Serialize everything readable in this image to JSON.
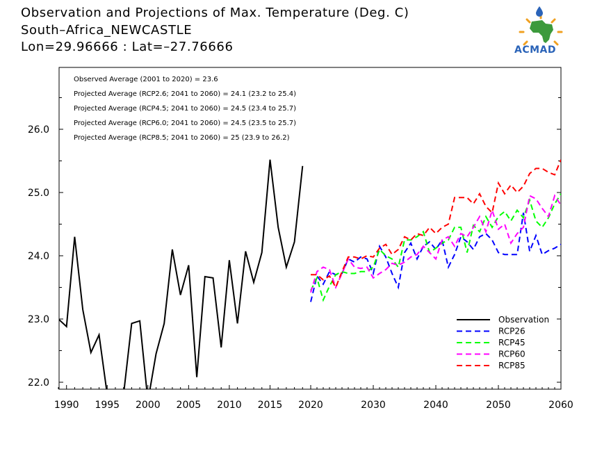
{
  "header": {
    "title_line1": "Observation and Projections of Max. Temperature (Deg. C)",
    "title_line2": "South–Africa_NEWCASTLE",
    "title_line3": "Lon=29.96666 : Lat=–27.76666"
  },
  "logo": {
    "text": "ACMAD",
    "colors": {
      "africa": "#3c9a3c",
      "rays": "#f0a020",
      "drop": "#2a63b8"
    }
  },
  "chart_data": {
    "type": "line",
    "xlim": [
      1989,
      2060
    ],
    "ylim": [
      21.9,
      26.9
    ],
    "xticks": [
      1990,
      1995,
      2000,
      2005,
      2010,
      2015,
      2020,
      2030,
      2040,
      2050,
      2060
    ],
    "yticks": [
      22.0,
      23.0,
      24.0,
      25.0,
      26.0
    ],
    "ytick_labels": [
      "22.0",
      "23.0",
      "24.0",
      "25.0",
      "26.0"
    ],
    "grid": false,
    "legend_position": "bottom-right",
    "annotations": [
      "Observed Average (2001 to 2020) = 23.6",
      "Projected Average (RCP2.6; 2041 to 2060) = 24.1 (23.2 to 25.4)",
      "Projected Average (RCP4.5; 2041 to 2060) = 24.5 (23.4 to 25.7)",
      "Projected Average (RCP6.0; 2041 to 2060) = 24.5 (23.5 to 25.7)",
      "Projected Average (RCP8.5; 2041 to 2060) = 25 (23.9 to 26.2)"
    ],
    "series": [
      {
        "name": "Observation",
        "color": "#000000",
        "dash": false,
        "x": [
          1989,
          1990,
          1991,
          1992,
          1993,
          1994,
          1995,
          1996,
          1997,
          1998,
          1999,
          2000,
          2001,
          2002,
          2003,
          2004,
          2005,
          2006,
          2007,
          2008,
          2009,
          2010,
          2011,
          2012,
          2013,
          2014,
          2015,
          2016,
          2017,
          2018,
          2019
        ],
        "values": [
          23.0,
          22.88,
          24.3,
          23.15,
          22.47,
          22.75,
          21.8,
          21.6,
          21.8,
          22.93,
          22.97,
          21.7,
          22.45,
          22.93,
          24.1,
          23.38,
          23.85,
          22.08,
          23.67,
          23.65,
          22.55,
          23.93,
          22.93,
          24.07,
          23.58,
          24.05,
          25.52,
          24.45,
          23.82,
          24.22,
          25.42
        ]
      },
      {
        "name": "RCP26",
        "color": "#0000ff",
        "dash": true,
        "x": [
          2020,
          2021,
          2022,
          2023,
          2024,
          2025,
          2026,
          2027,
          2028,
          2029,
          2030,
          2031,
          2032,
          2033,
          2034,
          2035,
          2036,
          2037,
          2038,
          2039,
          2040,
          2041,
          2042,
          2043,
          2044,
          2045,
          2046,
          2047,
          2048,
          2049,
          2050,
          2051,
          2052,
          2053,
          2054,
          2055,
          2056,
          2057,
          2058,
          2059,
          2060
        ],
        "values": [
          23.27,
          23.68,
          23.55,
          23.75,
          23.7,
          23.72,
          23.95,
          23.9,
          23.98,
          23.95,
          23.72,
          24.15,
          23.98,
          23.72,
          23.5,
          24.05,
          24.2,
          23.95,
          24.15,
          24.22,
          24.1,
          24.25,
          23.82,
          24.02,
          24.3,
          24.22,
          24.1,
          24.3,
          24.35,
          24.25,
          24.05,
          24.02,
          24.02,
          24.02,
          24.68,
          24.07,
          24.32,
          24.02,
          24.08,
          24.12,
          24.18
        ]
      },
      {
        "name": "RCP45",
        "color": "#00ff00",
        "dash": true,
        "x": [
          2020,
          2021,
          2022,
          2023,
          2024,
          2025,
          2026,
          2027,
          2028,
          2029,
          2030,
          2031,
          2032,
          2033,
          2034,
          2035,
          2036,
          2037,
          2038,
          2039,
          2040,
          2041,
          2042,
          2043,
          2044,
          2045,
          2046,
          2047,
          2048,
          2049,
          2050,
          2051,
          2052,
          2053,
          2054,
          2055,
          2056,
          2057,
          2058,
          2059,
          2060
        ],
        "values": [
          23.45,
          23.65,
          23.3,
          23.52,
          23.7,
          23.75,
          23.72,
          23.72,
          23.75,
          23.75,
          23.82,
          24.1,
          24.0,
          23.95,
          23.82,
          24.25,
          24.25,
          24.3,
          24.38,
          24.05,
          24.12,
          24.2,
          24.25,
          24.45,
          24.45,
          24.05,
          24.48,
          24.38,
          24.62,
          24.45,
          24.62,
          24.7,
          24.55,
          24.72,
          24.6,
          24.88,
          24.55,
          24.45,
          24.6,
          24.82,
          24.98
        ]
      },
      {
        "name": "RCP60",
        "color": "#ff00ff",
        "dash": true,
        "x": [
          2020,
          2021,
          2022,
          2023,
          2024,
          2025,
          2026,
          2027,
          2028,
          2029,
          2030,
          2031,
          2032,
          2033,
          2034,
          2035,
          2036,
          2037,
          2038,
          2039,
          2040,
          2041,
          2042,
          2043,
          2044,
          2045,
          2046,
          2047,
          2048,
          2049,
          2050,
          2051,
          2052,
          2053,
          2054,
          2055,
          2056,
          2057,
          2058,
          2059,
          2060
        ],
        "values": [
          23.42,
          23.75,
          23.82,
          23.78,
          23.5,
          23.72,
          23.95,
          23.82,
          23.8,
          23.82,
          23.65,
          23.72,
          23.78,
          23.88,
          23.85,
          23.9,
          23.98,
          24.02,
          24.15,
          24.05,
          23.95,
          24.25,
          24.3,
          24.15,
          24.35,
          24.3,
          24.45,
          24.62,
          24.38,
          24.72,
          24.42,
          24.5,
          24.2,
          24.35,
          24.45,
          24.95,
          24.9,
          24.75,
          24.62,
          24.95,
          24.8
        ]
      },
      {
        "name": "RCP85",
        "color": "#ff0000",
        "dash": true,
        "x": [
          2020,
          2021,
          2022,
          2023,
          2024,
          2025,
          2026,
          2027,
          2028,
          2029,
          2030,
          2031,
          2032,
          2033,
          2034,
          2035,
          2036,
          2037,
          2038,
          2039,
          2040,
          2041,
          2042,
          2043,
          2044,
          2045,
          2046,
          2047,
          2048,
          2049,
          2050,
          2051,
          2052,
          2053,
          2054,
          2055,
          2056,
          2057,
          2058,
          2059,
          2060
        ],
        "values": [
          23.7,
          23.7,
          23.62,
          23.68,
          23.5,
          23.75,
          23.98,
          23.98,
          23.95,
          24.0,
          23.98,
          24.12,
          24.18,
          24.02,
          24.1,
          24.3,
          24.25,
          24.35,
          24.32,
          24.45,
          24.35,
          24.45,
          24.5,
          24.92,
          24.92,
          24.92,
          24.82,
          24.98,
          24.78,
          24.68,
          25.15,
          24.98,
          25.12,
          25.0,
          25.1,
          25.3,
          25.38,
          25.38,
          25.32,
          25.28,
          25.52
        ]
      }
    ]
  }
}
